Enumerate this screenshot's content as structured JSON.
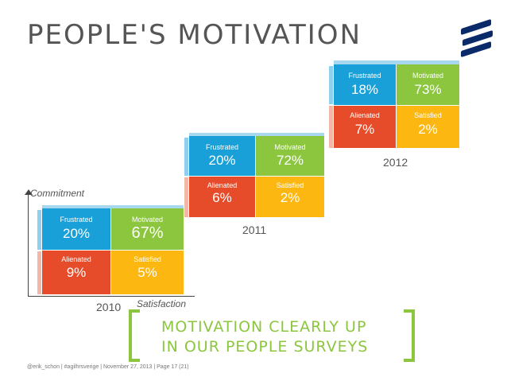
{
  "title": "PEOPLE'S MOTIVATION",
  "axes": {
    "y_label": "Commitment",
    "x_label": "Satisfaction"
  },
  "years": [
    {
      "year": "2010",
      "frustrated": {
        "label": "Frustrated",
        "value": "20%"
      },
      "motivated": {
        "label": "Motivated",
        "value": "67%"
      },
      "alienated": {
        "label": "Alienated",
        "value": "9%"
      },
      "satisfied": {
        "label": "Satisfied",
        "value": "5%"
      }
    },
    {
      "year": "2011",
      "frustrated": {
        "label": "Frustrated",
        "value": "20%"
      },
      "motivated": {
        "label": "Motivated",
        "value": "72%"
      },
      "alienated": {
        "label": "Alienated",
        "value": "6%"
      },
      "satisfied": {
        "label": "Satisfied",
        "value": "2%"
      }
    },
    {
      "year": "2012",
      "frustrated": {
        "label": "Frustrated",
        "value": "18%"
      },
      "motivated": {
        "label": "Motivated",
        "value": "73%"
      },
      "alienated": {
        "label": "Alienated",
        "value": "7%"
      },
      "satisfied": {
        "label": "Satisfied",
        "value": "2%"
      }
    }
  ],
  "message": {
    "line1": "MOTIVATION CLEARLY UP",
    "line2": "IN OUR PEOPLE SURVEYS"
  },
  "footer": "@erik_schon  |  #agilhrsverige  |  November 27, 2013  |  Page 17 (21)",
  "colors": {
    "frustrated": "#1aa0d8",
    "motivated": "#8cc63f",
    "alienated": "#e74c2a",
    "satisfied": "#fcb711",
    "accent": "#8cc63f"
  },
  "icons": {
    "logo": "ericsson-logo-icon"
  }
}
